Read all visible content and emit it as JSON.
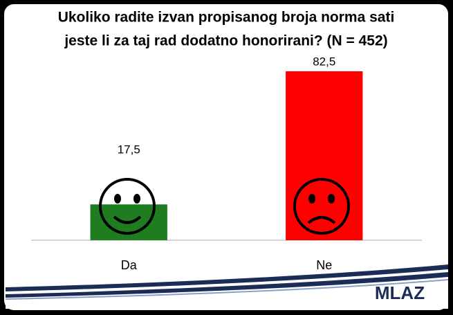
{
  "chart_data": {
    "type": "bar",
    "title": [
      "Ukoliko radite izvan propisanog broja norma sati",
      "jeste li za taj rad dodatno honorirani? (N = 452)"
    ],
    "categories": [
      "Da",
      "Ne"
    ],
    "values": [
      17.5,
      82.5
    ],
    "value_labels": [
      "17,5",
      "82,5"
    ],
    "colors": [
      "#1f7d1f",
      "#ff0000"
    ],
    "logo": "MLAZ"
  }
}
